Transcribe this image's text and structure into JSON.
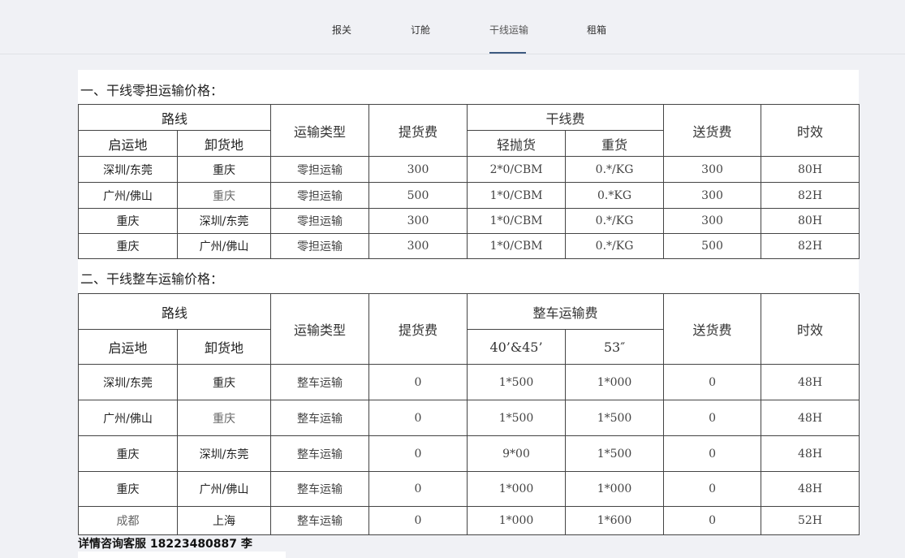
{
  "nav": {
    "items": [
      {
        "label": "报关"
      },
      {
        "label": "订舱"
      },
      {
        "label": "干线运输",
        "active": true
      },
      {
        "label": "租箱"
      }
    ],
    "accent": "#3d5a80"
  },
  "section1": {
    "title": "一、干线零担运输价格：",
    "headers": {
      "route": "路线",
      "origin": "启运地",
      "destination": "卸货地",
      "type": "运输类型",
      "pickup": "提货费",
      "trunk": "干线费",
      "light": "轻抛货",
      "heavy": "重货",
      "delivery": "送货费",
      "time": "时效"
    },
    "rows": [
      [
        "深圳/东莞",
        "重庆",
        "零担运输",
        "300",
        "2*0/CBM",
        "0.*/KG",
        "300",
        "80H"
      ],
      [
        "广州/佛山",
        "重庆",
        "零担运输",
        "500",
        "1*0/CBM",
        "0.*KG",
        "300",
        "82H"
      ],
      [
        "重庆",
        "深圳/东莞",
        "零担运输",
        "300",
        "1*0/CBM",
        "0.*/KG",
        "300",
        "80H"
      ],
      [
        "重庆",
        "广州/佛山",
        "零担运输",
        "300",
        "1*0/CBM",
        "0.*/KG",
        "500",
        "82H"
      ]
    ]
  },
  "section2": {
    "title": "二、干线整车运输价格：",
    "headers": {
      "route": "路线",
      "origin": "启运地",
      "destination": "卸货地",
      "type": "运输类型",
      "pickup": "提货费",
      "truck": "整车运输费",
      "c40": "40’&45’",
      "c53": "53″",
      "delivery": "送货费",
      "time": "时效"
    },
    "rows": [
      [
        "深圳/东莞",
        "重庆",
        "整车运输",
        "0",
        "1*500",
        "1*000",
        "0",
        "48H"
      ],
      [
        "广州/佛山",
        "重庆",
        "整车运输",
        "0",
        "1*500",
        "1*500",
        "0",
        "48H"
      ],
      [
        "重庆",
        "深圳/东莞",
        "整车运输",
        "0",
        "9*00",
        "1*500",
        "0",
        "48H"
      ],
      [
        "重庆",
        "广州/佛山",
        "整车运输",
        "0",
        "1*000",
        "1*000",
        "0",
        "48H"
      ],
      [
        "成都",
        "上海",
        "整车运输",
        "0",
        "1*000",
        "1*600",
        "0",
        "52H"
      ]
    ]
  },
  "footer": {
    "contact": "详情咨询客服 18223480887 李"
  }
}
